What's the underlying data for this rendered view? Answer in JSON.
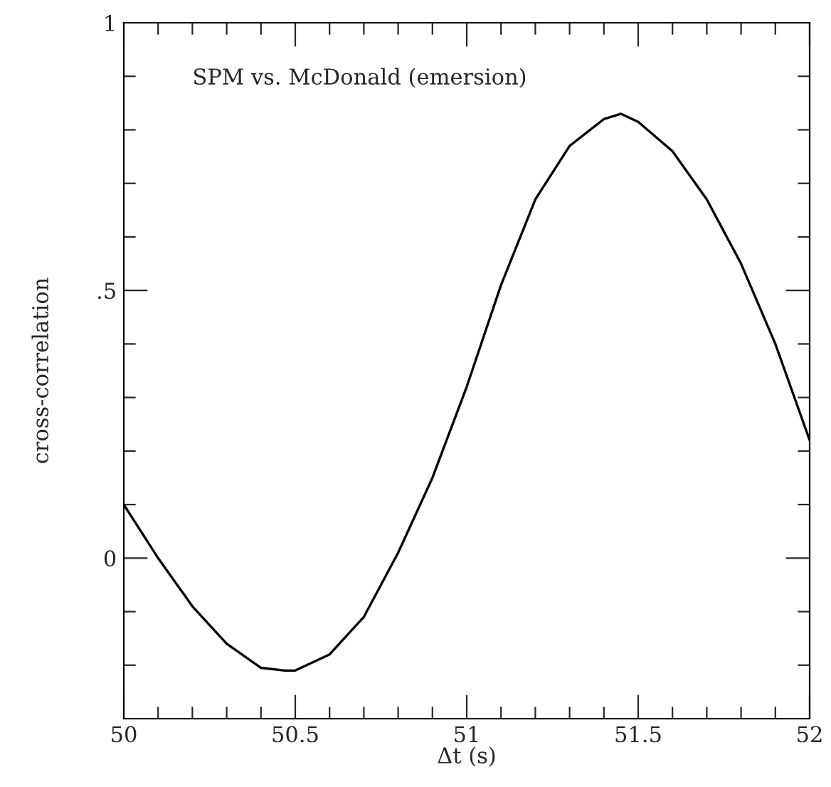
{
  "chart_data": {
    "type": "line",
    "xlabel": "Δt (s)",
    "ylabel": "cross-correlation",
    "annotations": [
      "SPM vs. McDonald (emersion)"
    ],
    "x": [
      50.0,
      50.1,
      50.2,
      50.3,
      50.4,
      50.47,
      50.5,
      50.6,
      50.7,
      50.8,
      50.9,
      51.0,
      51.1,
      51.2,
      51.3,
      51.4,
      51.45,
      51.5,
      51.6,
      51.7,
      51.8,
      51.9,
      52.0
    ],
    "series": [
      {
        "color": "#000000",
        "values": [
          0.1,
          0.0,
          -0.09,
          -0.16,
          -0.205,
          -0.21,
          -0.21,
          -0.18,
          -0.11,
          0.01,
          0.15,
          0.32,
          0.51,
          0.67,
          0.77,
          0.82,
          0.83,
          0.815,
          0.76,
          0.67,
          0.55,
          0.4,
          0.22
        ]
      }
    ],
    "xlim": [
      50,
      52
    ],
    "ylim": [
      -0.3,
      1
    ],
    "xticks": [
      50,
      {
        "value": 50.1,
        "label": null
      },
      {
        "value": 50.2,
        "label": null
      },
      {
        "value": 50.3,
        "label": null
      },
      {
        "value": 50.4,
        "label": null
      },
      50.5,
      {
        "value": 50.6,
        "label": null
      },
      {
        "value": 50.7,
        "label": null
      },
      {
        "value": 50.8,
        "label": null
      },
      {
        "value": 50.9,
        "label": null
      },
      51,
      {
        "value": 51.1,
        "label": null
      },
      {
        "value": 51.2,
        "label": null
      },
      {
        "value": 51.3,
        "label": null
      },
      {
        "value": 51.4,
        "label": null
      },
      51.5,
      {
        "value": 51.6,
        "label": null
      },
      {
        "value": 51.7,
        "label": null
      },
      {
        "value": 51.8,
        "label": null
      },
      {
        "value": 51.9,
        "label": null
      },
      52
    ],
    "yticks": [
      {
        "value": -0.2,
        "label": null
      },
      {
        "value": -0.1,
        "label": null
      },
      0,
      {
        "value": 0.1,
        "label": null
      },
      {
        "value": 0.2,
        "label": null
      },
      {
        "value": 0.3,
        "label": null
      },
      {
        "value": 0.4,
        "label": null
      },
      {
        "value": 0.5,
        "label": ".5"
      },
      {
        "value": 0.6,
        "label": null
      },
      {
        "value": 0.7,
        "label": null
      },
      {
        "value": 0.8,
        "label": null
      },
      {
        "value": 0.9,
        "label": null
      },
      1
    ],
    "grid": false,
    "legend": false,
    "marker": "none",
    "line_style": "solid"
  }
}
